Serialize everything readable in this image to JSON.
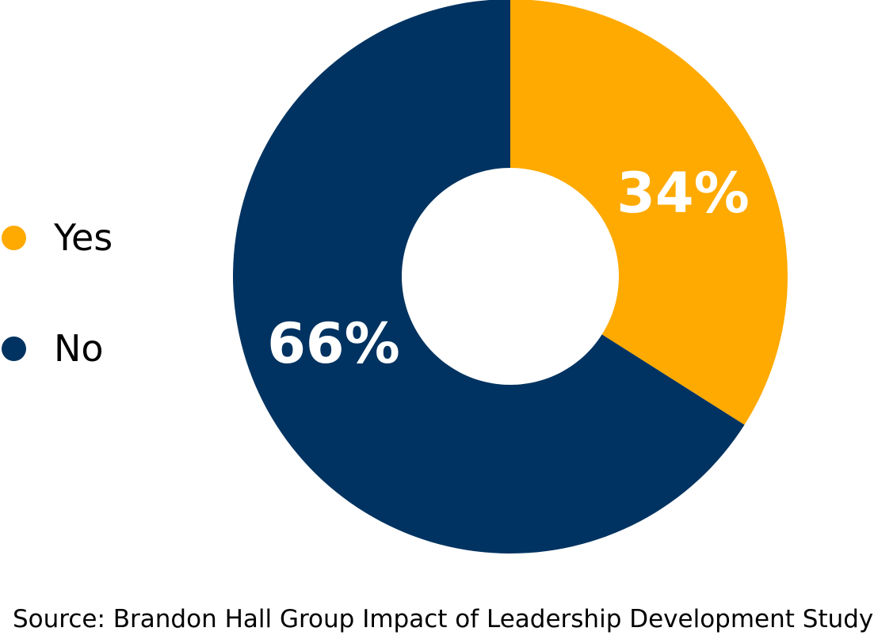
{
  "chart_data": {
    "type": "pie",
    "variant": "donut",
    "categories": [
      "Yes",
      "No"
    ],
    "values": [
      34,
      66
    ],
    "data_labels": [
      "34%",
      "66%"
    ],
    "colors": [
      "#FFAA00",
      "#003361"
    ],
    "legend_position": "left",
    "title": ""
  },
  "legend": {
    "items": [
      {
        "label": "Yes",
        "color": "#FFAA00"
      },
      {
        "label": "No",
        "color": "#003361"
      }
    ]
  },
  "source": "Source: Brandon Hall Group Impact of Leadership Development Study"
}
